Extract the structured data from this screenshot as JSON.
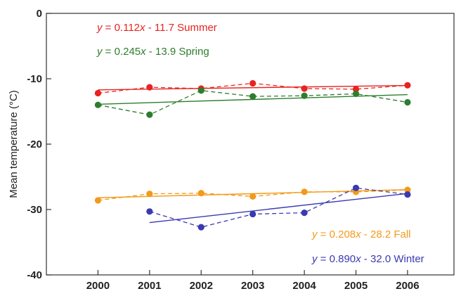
{
  "chart_data": {
    "type": "line",
    "ylabel": "Mean temperature (°C)",
    "xlabel": "",
    "xlim": [
      1999.0,
      2006.9
    ],
    "ylim": [
      -40,
      0
    ],
    "x_ticks": [
      2000,
      2001,
      2002,
      2003,
      2004,
      2005,
      2006
    ],
    "y_ticks": [
      0,
      -10,
      -20,
      -30,
      -40
    ],
    "series": [
      {
        "name": "Summer",
        "color": "#e8231f",
        "x": [
          2000,
          2001,
          2002,
          2003,
          2004,
          2005,
          2006
        ],
        "y": [
          -12.2,
          -11.3,
          -11.5,
          -10.7,
          -11.5,
          -11.6,
          -11.0
        ],
        "fit": {
          "slope": 0.112,
          "intercept": -11.7
        },
        "equation": {
          "y": "y",
          "mid": " = 0.112",
          "x": "x",
          "tail": " - 11.7 Summer"
        }
      },
      {
        "name": "Spring",
        "color": "#2e7d2e",
        "x": [
          2000,
          2001,
          2002,
          2003,
          2004,
          2005,
          2006
        ],
        "y": [
          -14.0,
          -15.5,
          -11.8,
          -12.7,
          -12.6,
          -12.3,
          -13.6
        ],
        "fit": {
          "slope": 0.245,
          "intercept": -13.9
        },
        "equation": {
          "y": "y",
          "mid": " = 0.245",
          "x": "x",
          "tail": " - 13.9 Spring"
        }
      },
      {
        "name": "Fall",
        "color": "#f39a1a",
        "x": [
          2000,
          2001,
          2002,
          2003,
          2004,
          2005,
          2006
        ],
        "y": [
          -28.6,
          -27.6,
          -27.5,
          -28.0,
          -27.3,
          -27.3,
          -27.0
        ],
        "fit": {
          "slope": 0.208,
          "intercept": -28.2
        },
        "equation": {
          "y": "y",
          "mid": " = 0.208",
          "x": "x",
          "tail": " - 28.2   Fall"
        }
      },
      {
        "name": "Winter",
        "color": "#3a3ab0",
        "x": [
          2001,
          2002,
          2003,
          2004,
          2005,
          2006
        ],
        "y": [
          -30.3,
          -32.7,
          -30.7,
          -30.5,
          -26.7,
          -27.7
        ],
        "fit": {
          "slope": 0.89,
          "intercept": -32.0
        },
        "equation": {
          "y": "y",
          "mid": " = 0.890",
          "x": "x",
          "tail": " - 32.0 Winter"
        }
      }
    ]
  }
}
